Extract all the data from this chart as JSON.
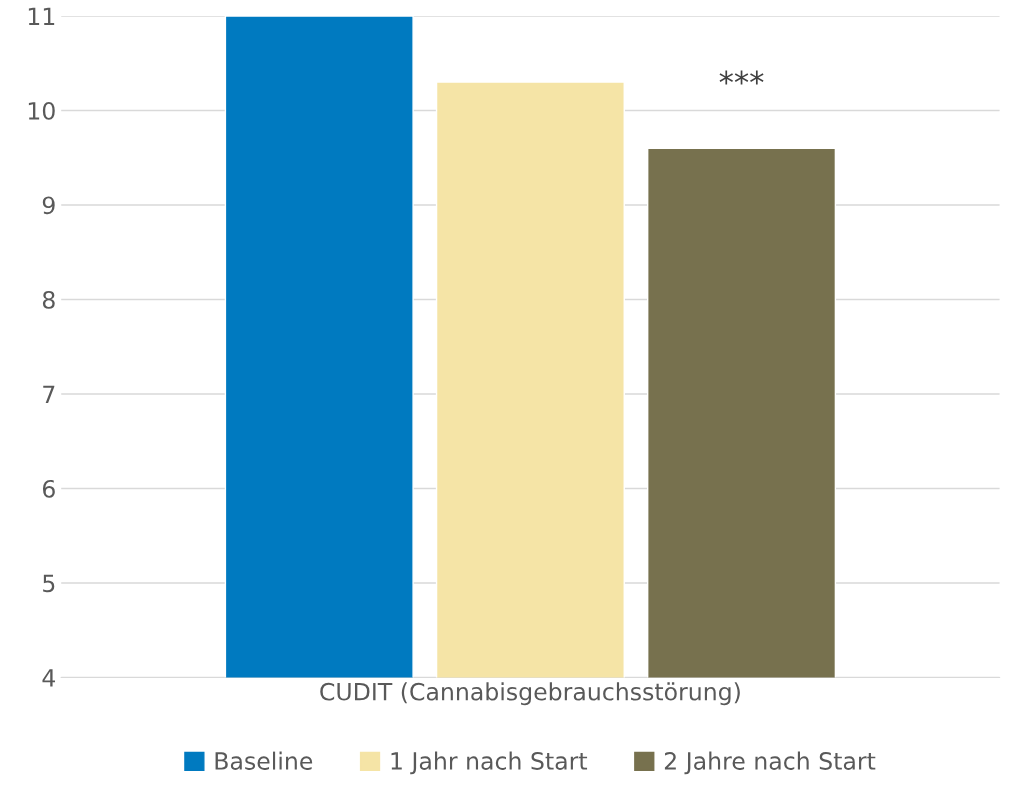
{
  "chart_data": {
    "type": "bar",
    "categories": [
      "CUDIT (Cannabisgebrauchsstörung)"
    ],
    "series": [
      {
        "name": "Baseline",
        "color": "#007ac0",
        "values": [
          11.0
        ]
      },
      {
        "name": "1 Jahr nach Start",
        "color": "#f5e4a6",
        "values": [
          10.3
        ]
      },
      {
        "name": "2 Jahre nach Start",
        "color": "#77714e",
        "values": [
          9.6
        ]
      }
    ],
    "ylim": [
      4,
      11
    ],
    "yticks": [
      4,
      5,
      6,
      7,
      8,
      9,
      10,
      11
    ],
    "grid": "y",
    "legend": "bottom",
    "annotations": [
      "***"
    ]
  }
}
